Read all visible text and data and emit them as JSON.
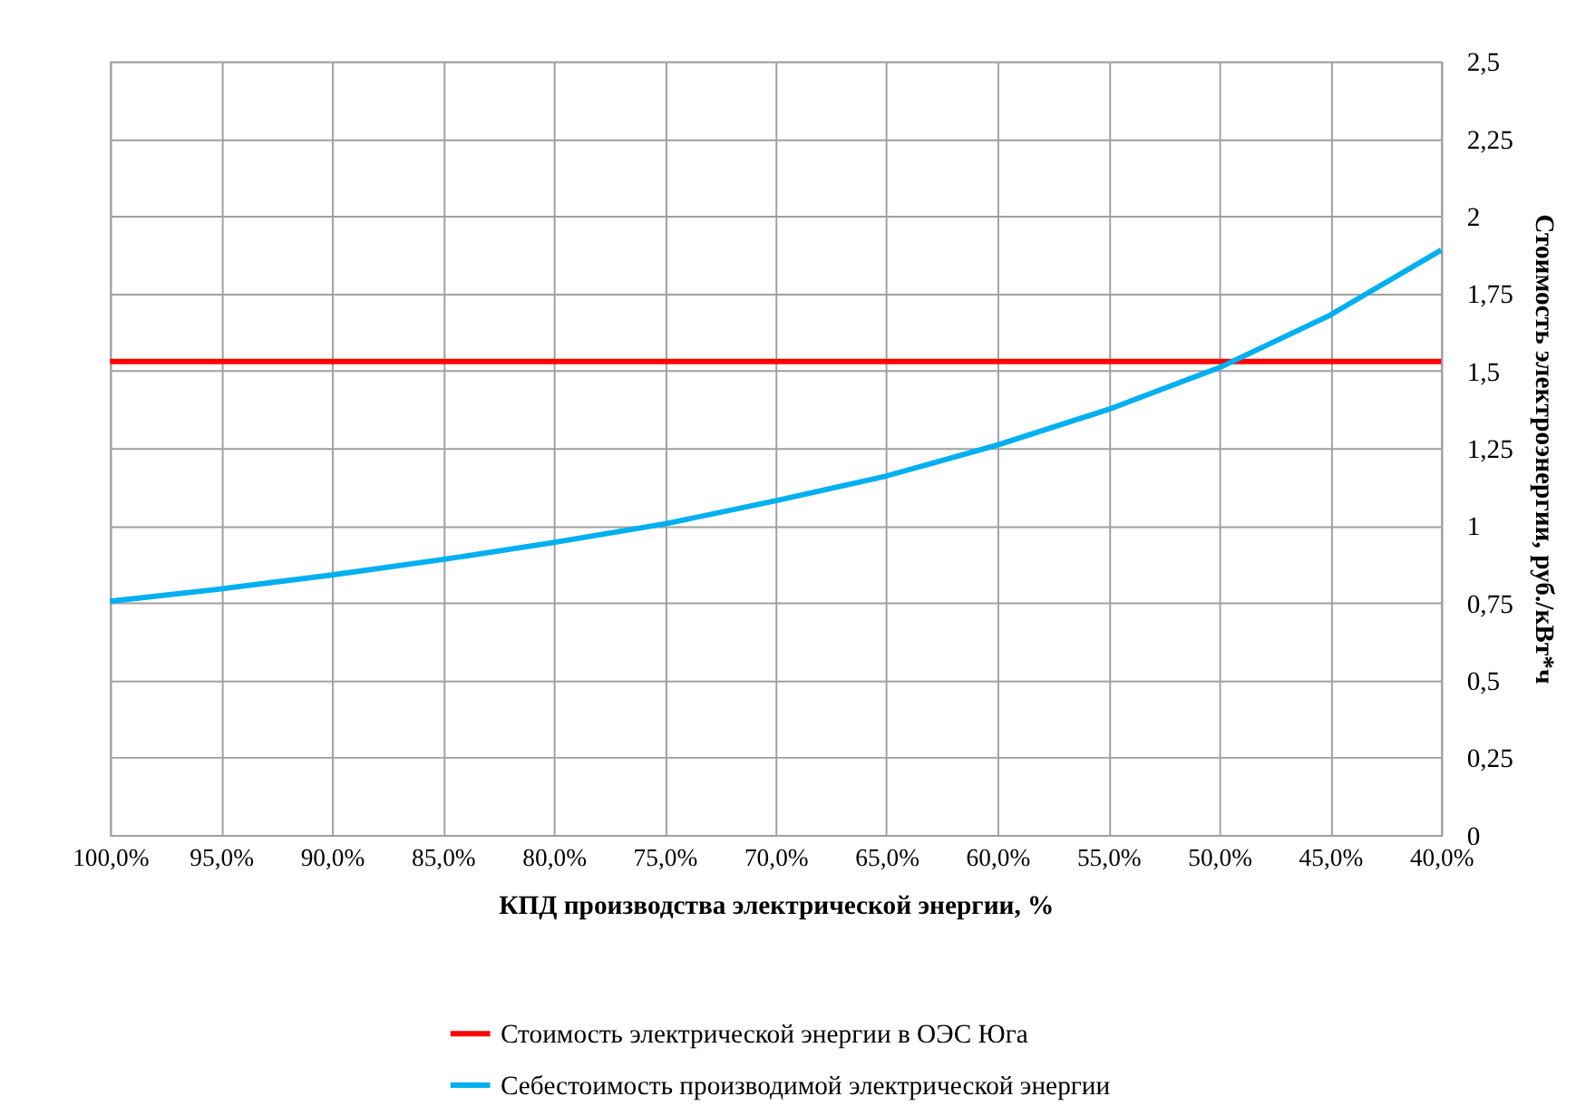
{
  "chart_data": {
    "type": "line",
    "xlabel": "КПД производства электрической энергии, %",
    "ylabel": "Стоимость электроэнергии, руб./кВт*ч",
    "xlim": [
      100,
      40
    ],
    "xticks": [
      {
        "value": 100,
        "label": "100,0%"
      },
      {
        "value": 95,
        "label": "95,0%"
      },
      {
        "value": 90,
        "label": "90,0%"
      },
      {
        "value": 85,
        "label": "85,0%"
      },
      {
        "value": 80,
        "label": "80,0%"
      },
      {
        "value": 75,
        "label": "75,0%"
      },
      {
        "value": 70,
        "label": "70,0%"
      },
      {
        "value": 65,
        "label": "65,0%"
      },
      {
        "value": 60,
        "label": "60,0%"
      },
      {
        "value": 55,
        "label": "55,0%"
      },
      {
        "value": 50,
        "label": "50,0%"
      },
      {
        "value": 45,
        "label": "45,0%"
      },
      {
        "value": 40,
        "label": "40,0%"
      }
    ],
    "ylim": [
      0,
      2.5
    ],
    "yticks": [
      0,
      {
        "value": 0.25,
        "label": "0,25"
      },
      {
        "value": 0.5,
        "label": "0,5"
      },
      {
        "value": 0.75,
        "label": "0,75"
      },
      1,
      {
        "value": 1.25,
        "label": "1,25"
      },
      {
        "value": 1.5,
        "label": "1,5"
      },
      {
        "value": 1.75,
        "label": "1,75"
      },
      2,
      {
        "value": 2.25,
        "label": "2,25"
      },
      {
        "value": 2.5,
        "label": "2,5"
      }
    ],
    "grid": true,
    "legend": "bottom",
    "marker": "none",
    "line_style": "solid",
    "series": [
      {
        "name": "Стоимость электрической энергии в ОЭС Юга",
        "color": "#ff0000",
        "x": [
          100,
          40
        ],
        "values": [
          1.53,
          1.53
        ]
      },
      {
        "name": "Себестоимость производимой электрической энергии",
        "color": "#00b0f0",
        "x": [
          100,
          95,
          90,
          85,
          80,
          75,
          70,
          65,
          60,
          55,
          50,
          45,
          40
        ],
        "values": [
          0.755,
          0.795,
          0.84,
          0.89,
          0.945,
          1.005,
          1.08,
          1.16,
          1.26,
          1.375,
          1.51,
          1.68,
          1.89
        ]
      }
    ]
  }
}
